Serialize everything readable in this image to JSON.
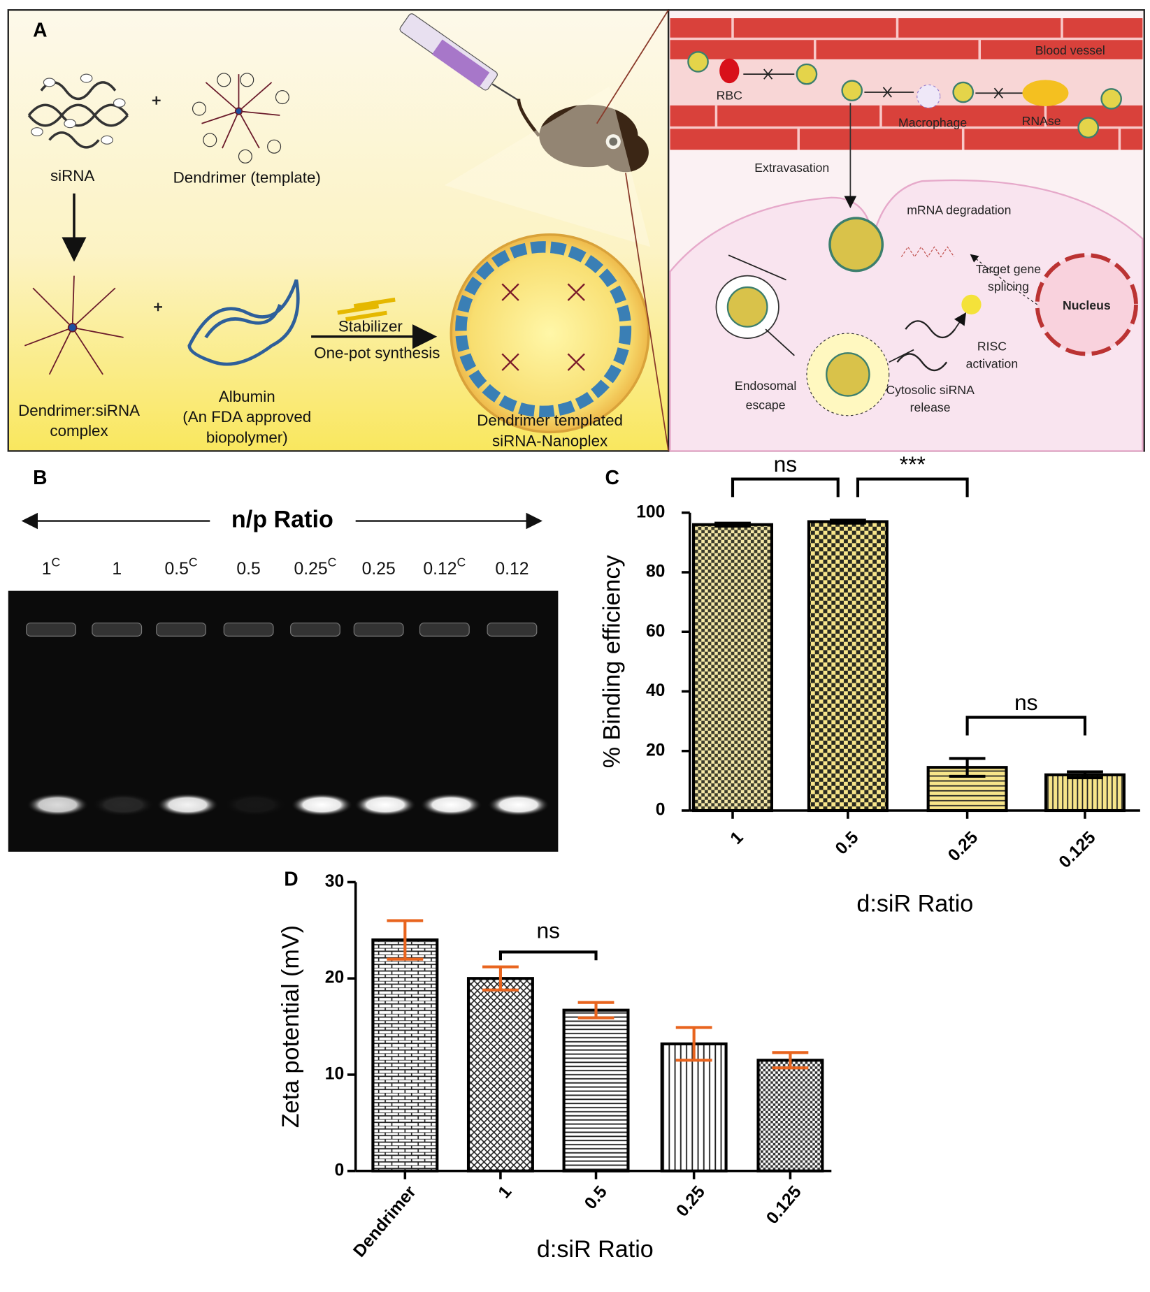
{
  "panel_labels": [
    "A",
    "B",
    "C",
    "D"
  ],
  "panel_a": {
    "sirna": "siRNA",
    "dendrimer": "Dendrimer (template)",
    "complex": [
      "Dendrimer:siRNA",
      "complex"
    ],
    "albumin": [
      "Albumin",
      "(An FDA approved",
      "biopolymer)"
    ],
    "stabilizer": "Stabilizer",
    "synthesis": "One-pot synthesis",
    "nanoplex": [
      "Dendrimer templated",
      "siRNA-Nanoplex"
    ],
    "blood_vessel": "Blood vessel",
    "rbc": "RBC",
    "macrophage": "Macrophage",
    "rnase": "RNAse",
    "extravasation": "Extravasation",
    "mrna_degradation": "mRNA degradation",
    "target_gene": [
      "Target gene",
      "splicing"
    ],
    "nucleus": "Nucleus",
    "risc": [
      "RISC",
      "activation"
    ],
    "endosomal": [
      "Endosomal",
      "escape"
    ],
    "cytosolic": [
      "Cytosolic siRNA",
      "release"
    ]
  },
  "panel_b": {
    "title": "n/p Ratio",
    "lanes": [
      {
        "label": "1",
        "sup": "C"
      },
      {
        "label": "1"
      },
      {
        "label": "0.5",
        "sup": "C"
      },
      {
        "label": "0.5"
      },
      {
        "label": "0.25",
        "sup": "C"
      },
      {
        "label": "0.25"
      },
      {
        "label": "0.12",
        "sup": "C"
      },
      {
        "label": "0.12"
      }
    ]
  },
  "chart_data": [
    {
      "type": "bar",
      "y_label": "% Binding efficiency",
      "x_label": "d:siR Ratio",
      "categories": [
        "1",
        "0.5",
        "0.25",
        "0.125"
      ],
      "values": [
        96,
        97,
        14.5,
        12
      ],
      "errors": [
        0.5,
        0.5,
        3,
        1
      ],
      "error_color": "#000000",
      "ylim": [
        0,
        100
      ],
      "yticks": [
        0,
        20,
        40,
        60,
        80,
        100
      ],
      "annotations": [
        {
          "text": "ns",
          "from": 0,
          "to": 1
        },
        {
          "text": "***",
          "from": 1,
          "to": 2
        },
        {
          "text": "ns",
          "from": 2,
          "to": 3
        }
      ]
    },
    {
      "type": "bar",
      "y_label": "Zeta potential (mV)",
      "x_label": "d:siR Ratio",
      "categories": [
        "Dendrimer",
        "1",
        "0.5",
        "0.25",
        "0.125"
      ],
      "values": [
        24,
        20,
        16.7,
        13.2,
        11.5
      ],
      "errors": [
        2,
        1.2,
        0.8,
        1.7,
        0.8
      ],
      "error_color": "#e8641e",
      "ylim": [
        0,
        30
      ],
      "yticks": [
        0,
        10,
        20,
        30
      ],
      "annotations": [
        {
          "text": "ns",
          "from": 1,
          "to": 2
        }
      ]
    }
  ]
}
